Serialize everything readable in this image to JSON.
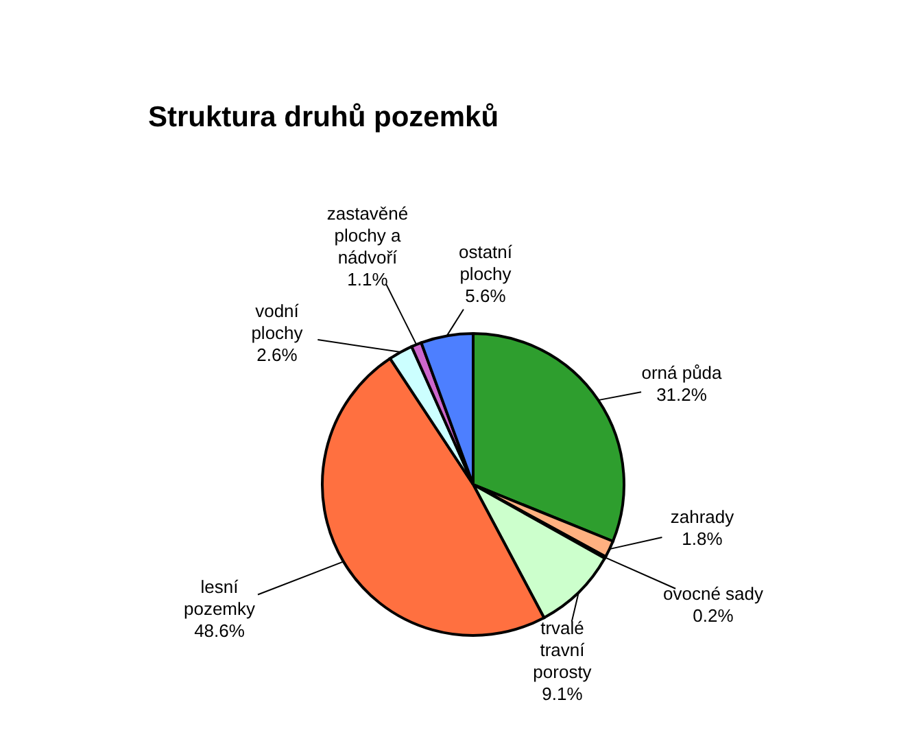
{
  "chart_data": {
    "type": "pie",
    "title": "Struktura druhů pozemků",
    "categories": [
      "orná půda",
      "zahrady",
      "ovocné sady",
      "trvalé travní porosty",
      "lesní pozemky",
      "vodní plochy",
      "zastavěné plochy a nádvoří",
      "ostatní plochy"
    ],
    "values": [
      31.2,
      1.8,
      0.2,
      9.1,
      48.6,
      2.6,
      1.1,
      5.6
    ],
    "value_labels": [
      "31.2%",
      "1.8%",
      "0.2%",
      "9.1%",
      "48.6%",
      "2.6%",
      "1.1%",
      "5.6%"
    ],
    "colors": [
      "#2e9e2e",
      "#ffb080",
      "#7a3a1a",
      "#ccffcc",
      "#ff7040",
      "#ccffff",
      "#cc66cc",
      "#4d7fff"
    ],
    "legend": false
  }
}
